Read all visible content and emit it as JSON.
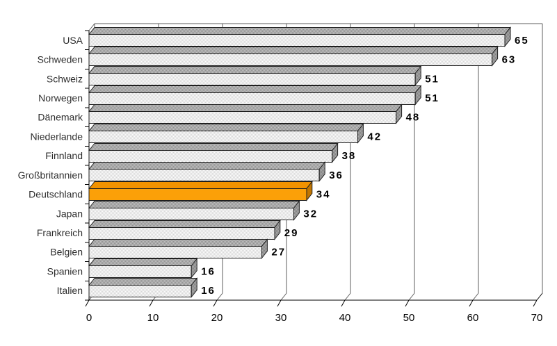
{
  "chart_data": {
    "type": "bar",
    "orientation": "horizontal",
    "style_3d": true,
    "title": "",
    "categories": [
      "USA",
      "Schweden",
      "Schweiz",
      "Norwegen",
      "Dänemark",
      "Niederlande",
      "Finnland",
      "Großbritannien",
      "Deutschland",
      "Japan",
      "Frankreich",
      "Belgien",
      "Spanien",
      "Italien"
    ],
    "values": [
      65,
      63,
      51,
      51,
      48,
      42,
      38,
      36,
      34,
      32,
      29,
      27,
      16,
      16
    ],
    "value_labels": [
      "65",
      "63",
      "51",
      "51",
      "48",
      "42",
      "38",
      "36",
      "34",
      "32",
      "29",
      "27",
      "16",
      "16"
    ],
    "x_ticks": [
      0,
      10,
      20,
      30,
      40,
      50,
      60,
      70
    ],
    "x_tick_labels": [
      "0",
      "10",
      "20",
      "30",
      "40",
      "50",
      "60",
      "70"
    ],
    "xlim": [
      0,
      70
    ],
    "xlabel": "",
    "ylabel": "",
    "grid": true,
    "legend": false,
    "highlight_category": "Deutschland",
    "colors": {
      "highlight_front": "#FBA008",
      "highlight_top": "#F29200",
      "highlight_side": "#C17602",
      "bar_front_light": "#FFFFFF",
      "bar_front_dark": "#D6D6D6",
      "bar_top_light": "#C4C4C4",
      "bar_top_dark": "#8F8F8F",
      "bar_side_light": "#ADADAD",
      "bar_side_dark": "#7D7D7D",
      "outline": "#1F1F1F",
      "grid_line": "#5E5E5E",
      "axis_line": "#000000",
      "background": "#FFFFFF",
      "category_label": "#2E2E2E",
      "value_label": "#000000",
      "tick_label": "#000000"
    }
  }
}
